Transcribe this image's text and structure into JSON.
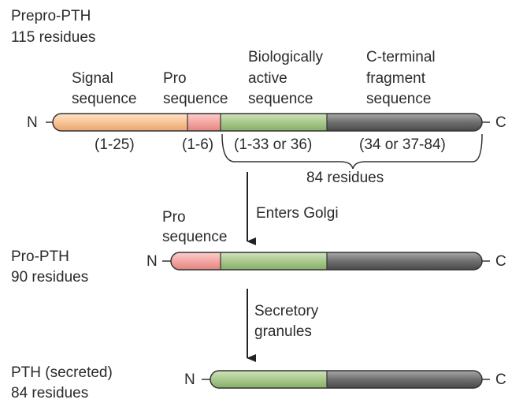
{
  "prepro": {
    "name": "Prepro-PTH",
    "residues": "115 residues",
    "segments": {
      "signal": {
        "label1": "Signal",
        "label2": "sequence",
        "range": "(1-25)"
      },
      "pro": {
        "label1": "Pro",
        "label2": "sequence",
        "range": "(1-6)"
      },
      "active": {
        "label1": "Biologically",
        "label2": "active",
        "label3": "sequence",
        "range": "(1-33 or 36)"
      },
      "cterm": {
        "label1": "C-terminal",
        "label2": "fragment",
        "label3": "sequence",
        "range": "(34 or 37-84)"
      }
    },
    "brace_label": "84 residues"
  },
  "step1": {
    "label": "Enters Golgi"
  },
  "pro_pth": {
    "name": "Pro-PTH",
    "residues": "90 residues",
    "pro_label1": "Pro",
    "pro_label2": "sequence"
  },
  "step2": {
    "label1": "Secretory",
    "label2": "granules"
  },
  "pth": {
    "name": "PTH (secreted)",
    "residues": "84 residues"
  },
  "termini": {
    "n": "N",
    "c": "C"
  },
  "colors": {
    "signal": "#f9c89b",
    "pro": "#f4a6a3",
    "active": "#a9c98d",
    "cterm": "#6f6f6f",
    "outline": "#333333"
  }
}
